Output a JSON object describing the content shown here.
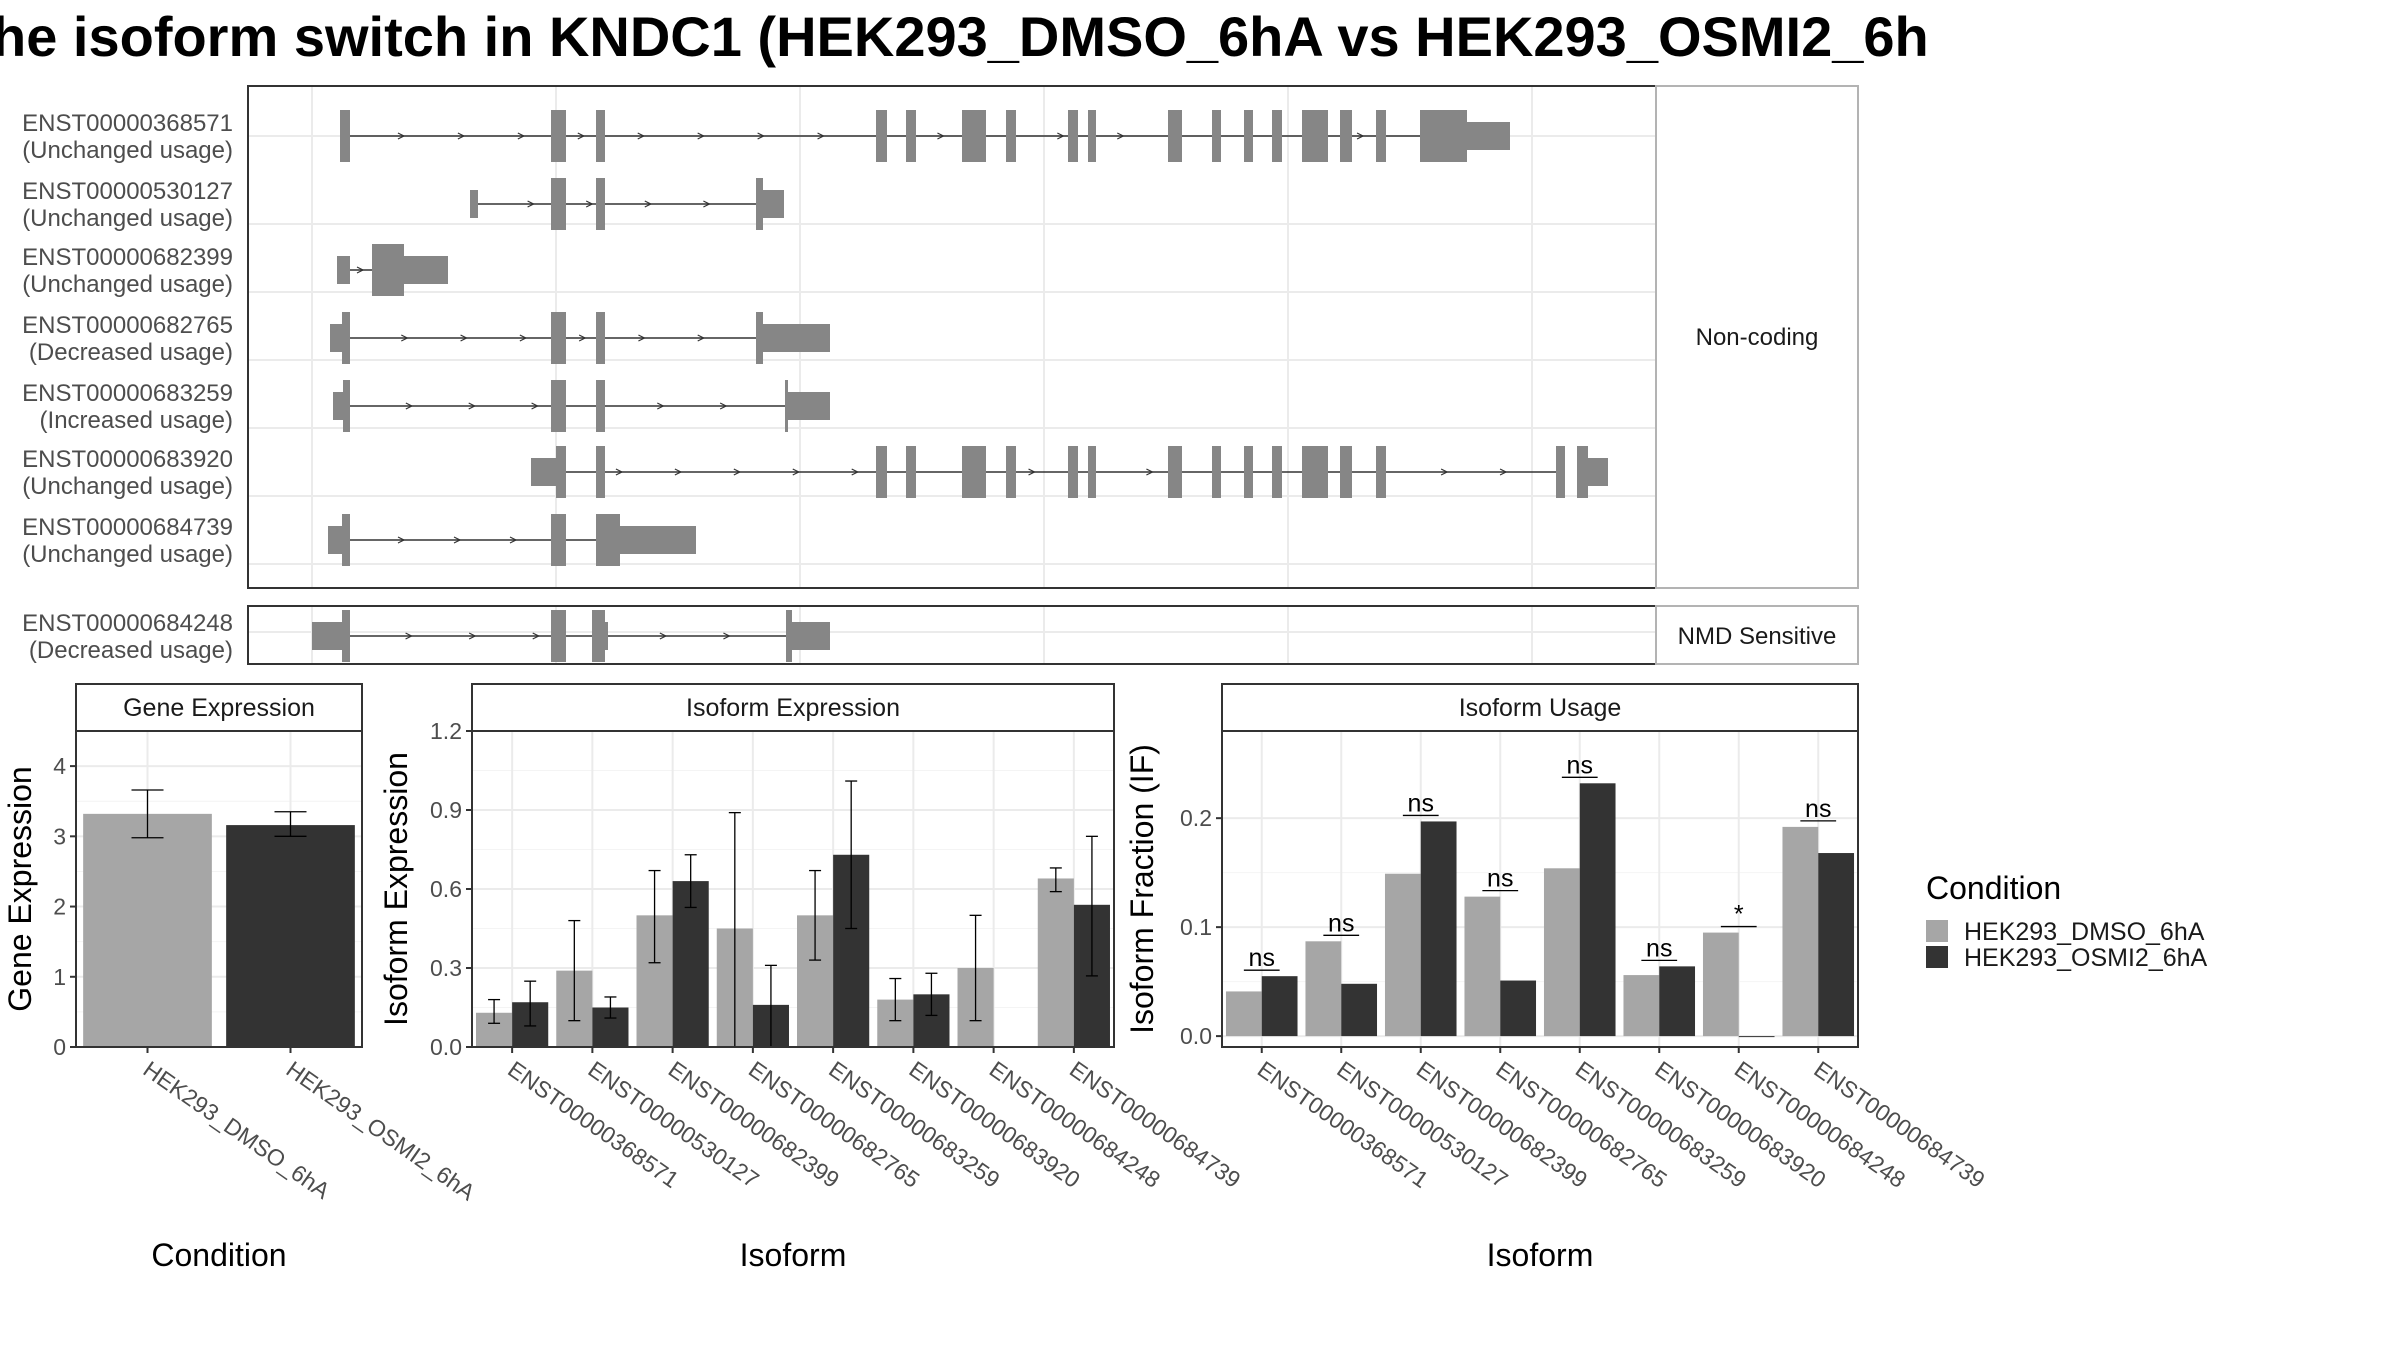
{
  "title": "he isoform switch in KNDC1 (HEK293_DMSO_6hA vs HEK293_OSMI2_6h",
  "colors": {
    "condition_a": "#a6a6a6",
    "condition_b": "#333333",
    "structure": "#868686",
    "grid": "#ebebeb",
    "panel_border": "#333333"
  },
  "structure_plot": {
    "facets": [
      {
        "label": "Non-coding",
        "transcripts": [
          {
            "id": "ENST00000368571",
            "usage": "(Unchanged usage)"
          },
          {
            "id": "ENST00000530127",
            "usage": "(Unchanged usage)"
          },
          {
            "id": "ENST00000682399",
            "usage": "(Unchanged usage)"
          },
          {
            "id": "ENST00000682765",
            "usage": "(Decreased usage)"
          },
          {
            "id": "ENST00000683259",
            "usage": "(Increased usage)"
          },
          {
            "id": "ENST00000683920",
            "usage": "(Unchanged usage)"
          },
          {
            "id": "ENST00000684739",
            "usage": "(Unchanged usage)"
          }
        ]
      },
      {
        "label": "NMD Sensitive",
        "transcripts": [
          {
            "id": "ENST00000684248",
            "usage": "(Decreased usage)"
          }
        ]
      }
    ]
  },
  "chart_data": [
    {
      "type": "bar",
      "title": "Gene Expression",
      "xlabel": "Condition",
      "ylabel": "Gene Expression",
      "ylim": [
        0,
        4.5
      ],
      "yticks": [
        "0",
        "1",
        "2",
        "3",
        "4"
      ],
      "categories": [
        "HEK293_DMSO_6hA",
        "HEK293_OSMI2_6hA"
      ],
      "values": [
        3.32,
        3.16
      ],
      "error": [
        [
          2.98,
          3.66
        ],
        [
          3.0,
          3.35
        ]
      ],
      "grid": true
    },
    {
      "type": "bar",
      "title": "Isoform Expression",
      "xlabel": "Isoform",
      "ylabel": "Isoform Expression",
      "ylim": [
        0,
        1.2
      ],
      "yticks": [
        "0.0",
        "0.3",
        "0.6",
        "0.9",
        "1.2"
      ],
      "categories": [
        "ENST00000368571",
        "ENST00000530127",
        "ENST00000682399",
        "ENST00000682765",
        "ENST00000683259",
        "ENST00000683920",
        "ENST00000684248",
        "ENST00000684739"
      ],
      "series": [
        {
          "name": "HEK293_DMSO_6hA",
          "values": [
            0.13,
            0.29,
            0.5,
            0.45,
            0.5,
            0.18,
            0.3,
            0.64
          ],
          "error": [
            [
              0.09,
              0.18
            ],
            [
              0.1,
              0.48
            ],
            [
              0.32,
              0.67
            ],
            [
              0.0,
              0.89
            ],
            [
              0.33,
              0.67
            ],
            [
              0.1,
              0.26
            ],
            [
              0.1,
              0.5
            ],
            [
              0.59,
              0.68
            ]
          ]
        },
        {
          "name": "HEK293_OSMI2_6hA",
          "values": [
            0.17,
            0.15,
            0.63,
            0.16,
            0.73,
            0.2,
            0.0,
            0.54
          ],
          "error": [
            [
              0.08,
              0.25
            ],
            [
              0.11,
              0.19
            ],
            [
              0.53,
              0.73
            ],
            [
              0.0,
              0.31
            ],
            [
              0.45,
              1.01
            ],
            [
              0.12,
              0.28
            ],
            [
              0.0,
              0.0
            ],
            [
              0.27,
              0.8
            ]
          ]
        }
      ],
      "grid": true
    },
    {
      "type": "bar",
      "title": "Isoform Usage",
      "xlabel": "Isoform",
      "ylabel": "Isoform Fraction (IF)",
      "ylim": [
        -0.01,
        0.28
      ],
      "yticks": [
        "0.0",
        "0.1",
        "0.2"
      ],
      "categories": [
        "ENST00000368571",
        "ENST00000530127",
        "ENST00000682399",
        "ENST00000682765",
        "ENST00000683259",
        "ENST00000683920",
        "ENST00000684248",
        "ENST00000684739"
      ],
      "series": [
        {
          "name": "HEK293_DMSO_6hA",
          "values": [
            0.041,
            0.087,
            0.149,
            0.128,
            0.154,
            0.056,
            0.095,
            0.192
          ]
        },
        {
          "name": "HEK293_OSMI2_6hA",
          "values": [
            0.055,
            0.048,
            0.197,
            0.051,
            0.232,
            0.064,
            0.0,
            0.168
          ]
        }
      ],
      "significance": [
        "ns",
        "ns",
        "ns",
        "ns",
        "ns",
        "ns",
        "*",
        "ns"
      ],
      "grid": true
    }
  ],
  "legend": {
    "title": "Condition",
    "items": [
      {
        "label": "HEK293_DMSO_6hA"
      },
      {
        "label": "HEK293_OSMI2_6hA"
      }
    ]
  }
}
